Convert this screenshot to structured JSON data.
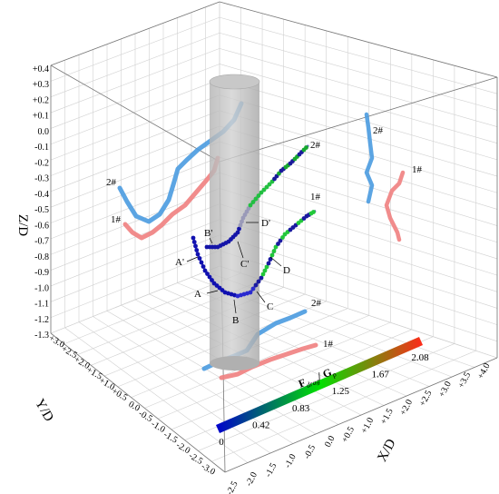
{
  "chart_data": {
    "type": "scatter",
    "title": "",
    "xlabel": "X/D",
    "ylabel": "Y/D",
    "zlabel": "Z/D",
    "xlim": [
      -2.5,
      4.0
    ],
    "ylim": [
      -3.0,
      3.0
    ],
    "zlim": [
      -1.3,
      0.4
    ],
    "x_ticks": [
      "-2.5",
      "-2.0",
      "-1.5",
      "-1.0",
      "-0.5",
      "0.0",
      "+0.5",
      "+1.0",
      "+1.5",
      "+2.0",
      "+2.5",
      "+3.0",
      "+3.5",
      "+4.0"
    ],
    "y_ticks": [
      "+3.0",
      "+2.5",
      "+2.0",
      "+1.5",
      "+1.0",
      "+0.5",
      "0.0",
      "-0.5",
      "-1.0",
      "-1.5",
      "-2.0",
      "-2.5",
      "-3.0"
    ],
    "z_ticks": [
      "+0.4",
      "+0.3",
      "+0.2",
      "+0.1",
      "0.0",
      "-0.1",
      "-0.2",
      "-0.3",
      "-0.4",
      "-0.5",
      "-0.6",
      "-0.7",
      "-0.8",
      "-0.9",
      "-1.0",
      "-1.1",
      "-1.2",
      "-1.3"
    ],
    "grid": true,
    "colorbar": {
      "title_main": "F",
      "title_sub": "drag",
      "title_rest": "/ G",
      "title_sub2": "p",
      "ticks": [
        "0",
        "0.42",
        "0.83",
        "1.25",
        "1.67",
        "2.08"
      ],
      "range": [
        0,
        2.08
      ],
      "colors": [
        "#0000cd",
        "#00e000",
        "#ff2a1a"
      ]
    },
    "trajectories": [
      {
        "label": "1#",
        "position": "main",
        "color_by": "F_drag/G_p"
      },
      {
        "label": "2#",
        "position": "main",
        "color_by": "F_drag/G_p"
      },
      {
        "label": "1#",
        "position": "left-wall projection",
        "color": "#f08080"
      },
      {
        "label": "2#",
        "position": "left-wall projection",
        "color": "#4a9be0"
      },
      {
        "label": "1#",
        "position": "right-wall projection",
        "color": "#f08080"
      },
      {
        "label": "2#",
        "position": "right-wall projection",
        "color": "#4a9be0"
      },
      {
        "label": "1#",
        "position": "floor projection",
        "color": "#f08080"
      },
      {
        "label": "2#",
        "position": "floor projection",
        "color": "#4a9be0"
      }
    ],
    "annotations": [
      "A",
      "B",
      "C",
      "D",
      "A'",
      "B'",
      "C'",
      "D'"
    ]
  }
}
